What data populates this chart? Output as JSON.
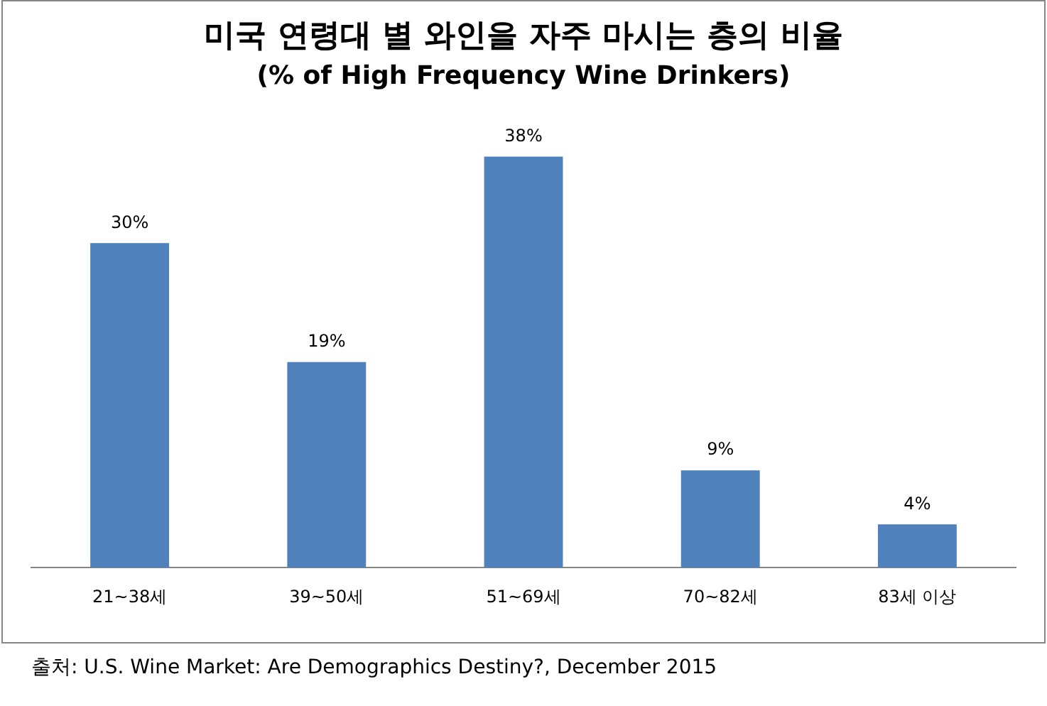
{
  "chart_data": {
    "type": "bar",
    "title": "미국 연령대 별 와인을 자주 마시는 층의 비율",
    "subtitle": "(% of High Frequency Wine Drinkers)",
    "categories": [
      "21~38세",
      "39~50세",
      "51~69세",
      "70~82세",
      "83세 이상"
    ],
    "values": [
      30,
      19,
      38,
      9,
      4
    ],
    "value_labels": [
      "30%",
      "19%",
      "38%",
      "9%",
      "4%"
    ],
    "color": "#4f81bd",
    "grid": false,
    "legend": false,
    "annotations": [
      "출처: U.S. Wine Market: Are Demographics Destiny?, December 2015"
    ]
  }
}
